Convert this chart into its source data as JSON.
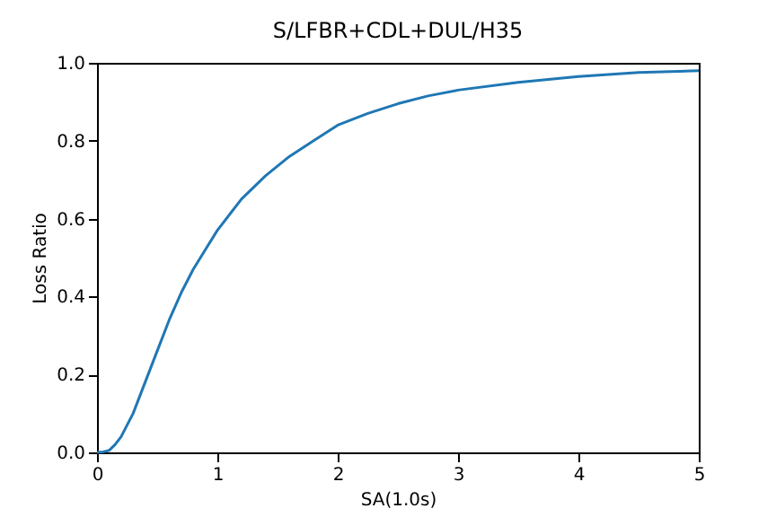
{
  "chart_data": {
    "type": "line",
    "title": "S/LFBR+CDL+DUL/H35",
    "xlabel": "SA(1.0s)",
    "ylabel": "Loss Ratio",
    "x": [
      0,
      0.05,
      0.1,
      0.15,
      0.2,
      0.3,
      0.4,
      0.5,
      0.6,
      0.7,
      0.8,
      0.9,
      1.0,
      1.2,
      1.4,
      1.6,
      1.8,
      2.0,
      2.25,
      2.5,
      2.75,
      3.0,
      3.5,
      4.0,
      4.5,
      5.0
    ],
    "series": [
      {
        "color": "#1f77b4",
        "values": [
          0,
          0.001,
          0.005,
          0.02,
          0.04,
          0.1,
          0.18,
          0.26,
          0.34,
          0.41,
          0.47,
          0.52,
          0.57,
          0.65,
          0.71,
          0.76,
          0.8,
          0.84,
          0.87,
          0.895,
          0.915,
          0.93,
          0.95,
          0.965,
          0.975,
          0.98
        ]
      }
    ],
    "xlim": [
      0,
      5
    ],
    "xticks": [
      0,
      1,
      2,
      3,
      4,
      5
    ],
    "ylim": [
      0,
      1
    ],
    "yticks": [
      {
        "value": 0,
        "label": "0.0"
      },
      0.2,
      0.4,
      0.6,
      0.8,
      {
        "value": 1,
        "label": "1.0"
      }
    ],
    "grid": false,
    "line_style": "solid",
    "marker": "none"
  }
}
